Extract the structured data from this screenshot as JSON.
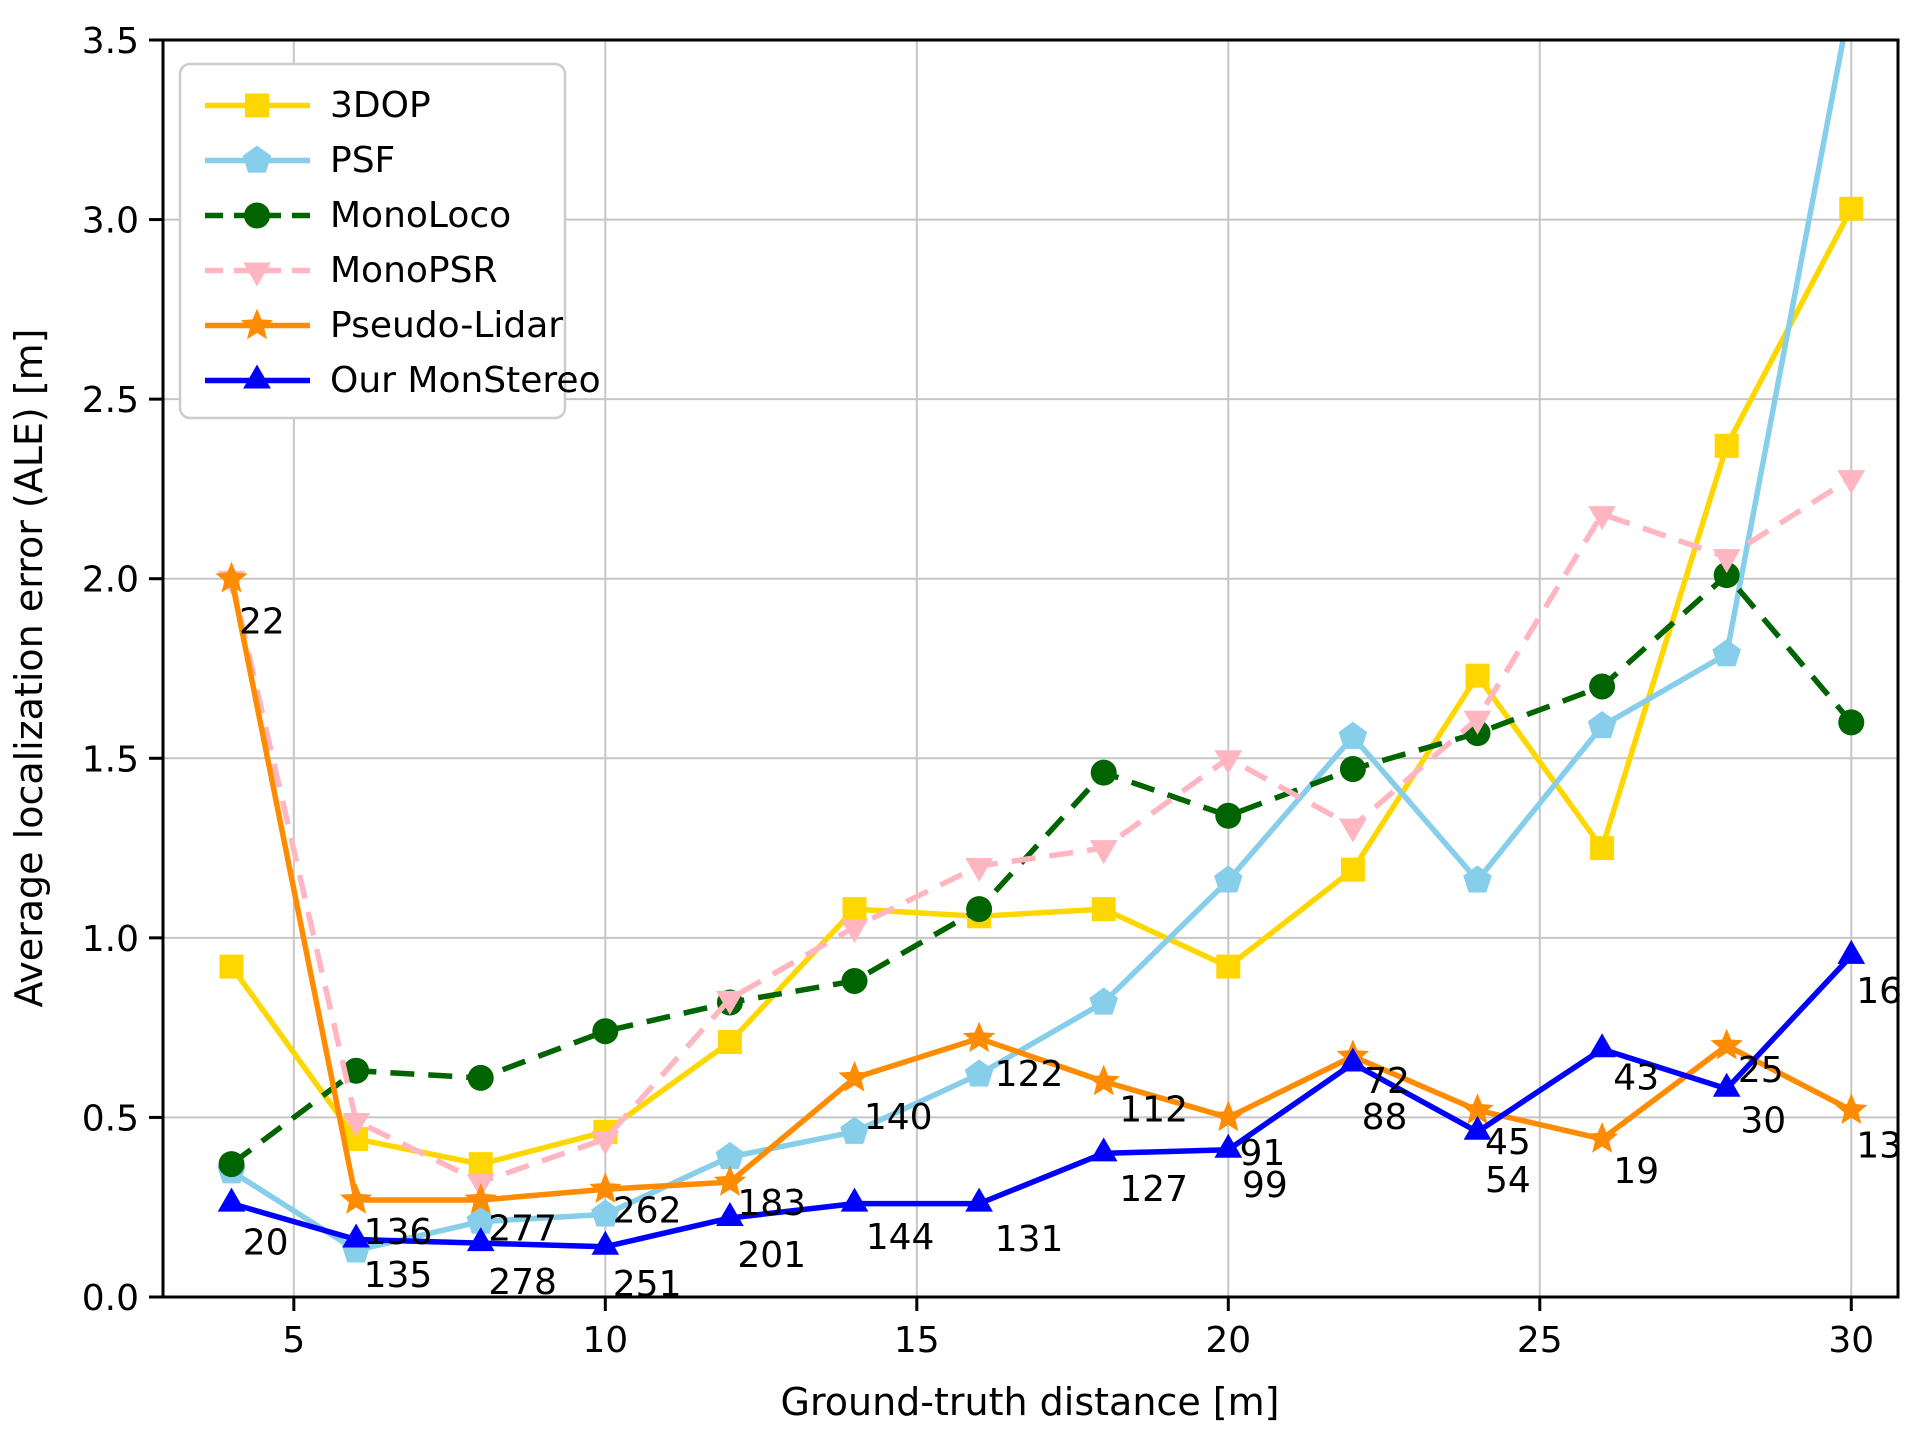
{
  "chart_data": {
    "type": "line",
    "title": "",
    "xlabel": "Ground-truth distance [m]",
    "ylabel": "Average localization error (ALE) [m]",
    "x": [
      4,
      6,
      8,
      10,
      12,
      14,
      16,
      18,
      20,
      22,
      24,
      26,
      28,
      30
    ],
    "xlim": [
      2.9,
      30.75
    ],
    "ylim": [
      0,
      3.5
    ],
    "xticks": [
      5,
      10,
      15,
      20,
      25,
      30
    ],
    "xtick_labels": [
      "5",
      "10",
      "15",
      "20",
      "25",
      "30"
    ],
    "yticks": [
      0.0,
      0.5,
      1.0,
      1.5,
      2.0,
      2.5,
      3.0,
      3.5
    ],
    "ytick_labels": [
      "0.0",
      "0.5",
      "1.0",
      "1.5",
      "2.0",
      "2.5",
      "3.0",
      "3.5"
    ],
    "grid": true,
    "grid_color": "#c6c6c6",
    "legend_position": "upper-left",
    "series": [
      {
        "name": "3DOP",
        "color": "#FFD700",
        "marker": "square",
        "dash": "solid",
        "values": [
          0.92,
          0.44,
          0.37,
          0.46,
          0.71,
          1.08,
          1.06,
          1.08,
          0.92,
          1.19,
          1.73,
          1.25,
          2.37,
          3.03
        ]
      },
      {
        "name": "PSF",
        "color": "#87CEEB",
        "marker": "pentagon",
        "dash": "solid",
        "values": [
          0.35,
          0.13,
          0.21,
          0.23,
          0.39,
          0.46,
          0.62,
          0.82,
          1.16,
          1.56,
          1.16,
          1.59,
          1.79,
          3.62
        ]
      },
      {
        "name": "MonoLoco",
        "color": "#006400",
        "marker": "circle",
        "dash": "dashed",
        "values": [
          0.37,
          0.63,
          0.61,
          0.74,
          0.82,
          0.88,
          1.08,
          1.46,
          1.34,
          1.47,
          1.57,
          1.7,
          2.01,
          1.6
        ]
      },
      {
        "name": "MonoPSR",
        "color": "#FFB6C1",
        "marker": "triangle-down",
        "dash": "dashed",
        "values": [
          2.0,
          0.49,
          0.32,
          0.44,
          0.83,
          1.03,
          1.2,
          1.25,
          1.5,
          1.31,
          1.61,
          2.18,
          2.06,
          2.28
        ]
      },
      {
        "name": "Pseudo-Lidar",
        "color": "#FF8C00",
        "marker": "star",
        "dash": "solid",
        "values": [
          2.0,
          0.27,
          0.27,
          0.3,
          0.32,
          0.61,
          0.72,
          0.6,
          0.5,
          0.67,
          0.52,
          0.44,
          0.7,
          0.52
        ]
      },
      {
        "name": "Our MonStereo",
        "color": "#0000FF",
        "marker": "triangle-up",
        "dash": "solid",
        "values": [
          0.26,
          0.16,
          0.15,
          0.14,
          0.22,
          0.26,
          0.26,
          0.4,
          0.41,
          0.65,
          0.46,
          0.69,
          0.58,
          0.95
        ]
      }
    ],
    "annotations": [
      {
        "text": "22",
        "series": "Pseudo-Lidar",
        "x": 4.12,
        "y": 1.88
      },
      {
        "text": "136",
        "series": "Pseudo-Lidar",
        "x": 6.12,
        "y": 0.18
      },
      {
        "text": "277",
        "series": "Pseudo-Lidar",
        "x": 8.12,
        "y": 0.19
      },
      {
        "text": "262",
        "series": "Pseudo-Lidar",
        "x": 10.12,
        "y": 0.24
      },
      {
        "text": "183",
        "series": "Pseudo-Lidar",
        "x": 12.12,
        "y": 0.26
      },
      {
        "text": "140",
        "series": "Pseudo-Lidar",
        "x": 14.15,
        "y": 0.5
      },
      {
        "text": "122",
        "series": "Pseudo-Lidar",
        "x": 16.25,
        "y": 0.62
      },
      {
        "text": "112",
        "series": "Pseudo-Lidar",
        "x": 18.25,
        "y": 0.52
      },
      {
        "text": "91",
        "series": "Pseudo-Lidar",
        "x": 20.18,
        "y": 0.4
      },
      {
        "text": "72",
        "series": "Pseudo-Lidar",
        "x": 22.18,
        "y": 0.6
      },
      {
        "text": "45",
        "series": "Pseudo-Lidar",
        "x": 24.12,
        "y": 0.43
      },
      {
        "text": "19",
        "series": "Pseudo-Lidar",
        "x": 26.18,
        "y": 0.35
      },
      {
        "text": "25",
        "series": "Pseudo-Lidar",
        "x": 28.18,
        "y": 0.63
      },
      {
        "text": "13",
        "series": "Pseudo-Lidar",
        "x": 30.08,
        "y": 0.42
      },
      {
        "text": "20",
        "series": "Our MonStereo",
        "x": 4.18,
        "y": 0.15
      },
      {
        "text": "135",
        "series": "Our MonStereo",
        "x": 6.12,
        "y": 0.06
      },
      {
        "text": "278",
        "series": "Our MonStereo",
        "x": 8.12,
        "y": 0.04
      },
      {
        "text": "251",
        "series": "Our MonStereo",
        "x": 10.12,
        "y": 0.035
      },
      {
        "text": "201",
        "series": "Our MonStereo",
        "x": 12.12,
        "y": 0.115
      },
      {
        "text": "144",
        "series": "Our MonStereo",
        "x": 14.18,
        "y": 0.165
      },
      {
        "text": "131",
        "series": "Our MonStereo",
        "x": 16.25,
        "y": 0.16
      },
      {
        "text": "127",
        "series": "Our MonStereo",
        "x": 18.25,
        "y": 0.3
      },
      {
        "text": "99",
        "series": "Our MonStereo",
        "x": 20.22,
        "y": 0.31
      },
      {
        "text": "88",
        "series": "Our MonStereo",
        "x": 22.14,
        "y": 0.5
      },
      {
        "text": "54",
        "series": "Our MonStereo",
        "x": 24.12,
        "y": 0.325
      },
      {
        "text": "43",
        "series": "Our MonStereo",
        "x": 26.18,
        "y": 0.61
      },
      {
        "text": "30",
        "series": "Our MonStereo",
        "x": 28.22,
        "y": 0.49
      },
      {
        "text": "16",
        "series": "Our MonStereo",
        "x": 30.08,
        "y": 0.85
      }
    ]
  }
}
